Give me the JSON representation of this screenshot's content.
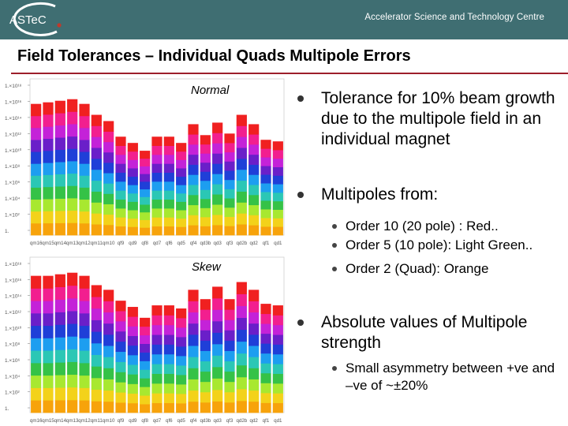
{
  "header": {
    "logo_text": "ASTeC",
    "org_name": "Accelerator Science and Technology Centre",
    "bg_color": "#3f6e72",
    "dot_color": "#c0392b"
  },
  "slide": {
    "title": "Field Tolerances – Individual Quads Multipole Errors"
  },
  "bullets": [
    {
      "text": "Tolerance for 10% beam growth due to the multipole field in an individual magnet"
    },
    {
      "text": "Multipoles from:",
      "sub": [
        "Order 10 (20 pole) : Red..",
        "Order 5 (10 pole): Light Green..",
        "Order 2 (Quad): Orange"
      ]
    },
    {
      "text": "Absolute values of Multipole strength",
      "sub": [
        "Small asymmetry between +ve and –ve of ~±20%"
      ]
    }
  ],
  "chart_data": [
    {
      "type": "bar",
      "stacked": true,
      "label": "Normal",
      "y_scale": "log",
      "y_ticks": [
        "1.×10¹⁸",
        "1.×10¹⁶",
        "1.×10¹⁴",
        "1.×10¹²",
        "1.×10¹⁰",
        "1.×10⁸",
        "1.×10⁶",
        "1.×10⁴",
        "1.×10²",
        "1."
      ],
      "categories": [
        "qm16",
        "qm15",
        "qm14",
        "qm13",
        "qm12",
        "qm11",
        "qm10",
        "qf9",
        "qd9",
        "qf8",
        "qd7",
        "qf6",
        "qd5",
        "qf4",
        "qd3b",
        "qd3",
        "qf3",
        "qd2b",
        "qd2",
        "qf1",
        "qd1"
      ],
      "heights": [
        84,
        85,
        86,
        87,
        84,
        77,
        73,
        63,
        59,
        54,
        63,
        63,
        59,
        71,
        64,
        72,
        65,
        77,
        71,
        61,
        60
      ],
      "series": [
        {
          "name": "Order 2 (Quad)",
          "color": "#f7a30b"
        },
        {
          "name": "",
          "color": "#f3d21a"
        },
        {
          "name": "Order 5 (10 pole)",
          "color": "#a8e830"
        },
        {
          "name": "",
          "color": "#35c247"
        },
        {
          "name": "",
          "color": "#2bc7b5"
        },
        {
          "name": "",
          "color": "#1d9ef0"
        },
        {
          "name": "",
          "color": "#1f3fd8"
        },
        {
          "name": "",
          "color": "#6a1fc9"
        },
        {
          "name": "",
          "color": "#c422d8"
        },
        {
          "name": "",
          "color": "#f21f8f"
        },
        {
          "name": "Order 10 (20 pole)",
          "color": "#f02020"
        }
      ]
    },
    {
      "type": "bar",
      "stacked": true,
      "label": "Skew",
      "y_scale": "log",
      "y_ticks": [
        "1.×10¹⁸",
        "1.×10¹⁶",
        "1.×10¹⁴",
        "1.×10¹²",
        "1.×10¹⁰",
        "1.×10⁸",
        "1.×10⁶",
        "1.×10⁴",
        "1.×10²",
        "1."
      ],
      "categories": [
        "qm16",
        "qm15",
        "qm14",
        "qm13",
        "qm12",
        "qm11",
        "qm10",
        "qf9",
        "qd9",
        "qf8",
        "qd7",
        "qf6",
        "qd5",
        "qf4",
        "qd3b",
        "qd3",
        "qf3",
        "qd2b",
        "qd2",
        "qf1",
        "qd1"
      ],
      "heights": [
        88,
        88,
        89,
        90,
        88,
        82,
        79,
        72,
        68,
        61,
        69,
        69,
        67,
        79,
        73,
        81,
        73,
        84,
        79,
        70,
        69
      ],
      "series": [
        {
          "name": "Order 2 (Quad)",
          "color": "#f7a30b"
        },
        {
          "name": "",
          "color": "#f3d21a"
        },
        {
          "name": "Order 5 (10 pole)",
          "color": "#a8e830"
        },
        {
          "name": "",
          "color": "#35c247"
        },
        {
          "name": "",
          "color": "#2bc7b5"
        },
        {
          "name": "",
          "color": "#1d9ef0"
        },
        {
          "name": "",
          "color": "#1f3fd8"
        },
        {
          "name": "",
          "color": "#6a1fc9"
        },
        {
          "name": "",
          "color": "#c422d8"
        },
        {
          "name": "",
          "color": "#f21f8f"
        },
        {
          "name": "Order 10 (20 pole)",
          "color": "#f02020"
        }
      ]
    }
  ]
}
